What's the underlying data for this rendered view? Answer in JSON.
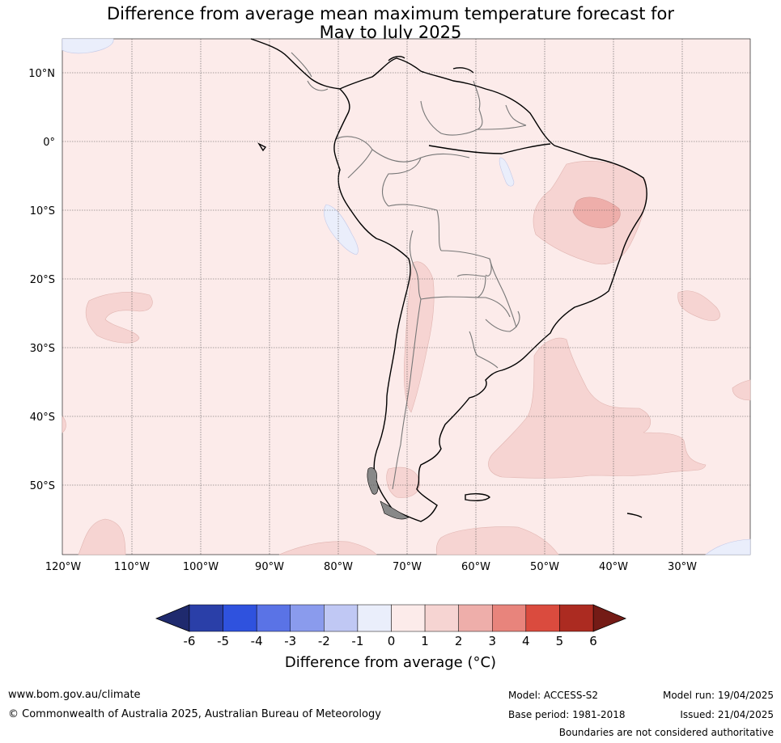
{
  "title_line1": "Difference from average mean maximum temperature forecast for",
  "title_line2": "May to July 2025",
  "map": {
    "lon_ticks": [
      "120°W",
      "110°W",
      "100°W",
      "90°W",
      "80°W",
      "70°W",
      "60°W",
      "50°W",
      "40°W",
      "30°W"
    ],
    "lat_ticks": [
      "10°N",
      "0°",
      "10°S",
      "20°S",
      "30°S",
      "40°S",
      "50°S"
    ],
    "grid": true
  },
  "colorbar": {
    "ticks": [
      "-6",
      "-5",
      "-4",
      "-3",
      "-2",
      "-1",
      "0",
      "1",
      "2",
      "3",
      "4",
      "5",
      "6"
    ],
    "colors": [
      "#2a3fa8",
      "#2f52de",
      "#5a73e6",
      "#8a9bed",
      "#c0c8f4",
      "#eaeefb",
      "#fcebea",
      "#f6d4d2",
      "#eeaeaa",
      "#e8847c",
      "#da4b3e",
      "#ac2b21"
    ],
    "under_color": "#1f2a6e",
    "over_color": "#741b16",
    "title": "Difference from average (°C)"
  },
  "colors": {
    "background_anomaly": "#fcebea",
    "light_red": "#f6d4d2",
    "medium_red": "#eeaeaa",
    "light_blue": "#eaeefb"
  },
  "footer": {
    "url": "www.bom.gov.au/climate",
    "copyright": "© Commonwealth of Australia 2025, Australian Bureau of Meteorology",
    "model": "Model: ACCESS-S2",
    "base_period": "Base period: 1981-2018",
    "model_run": "Model run: 19/04/2025",
    "issued": "Issued: 21/04/2025",
    "disclaimer": "Boundaries are not considered authoritative"
  }
}
